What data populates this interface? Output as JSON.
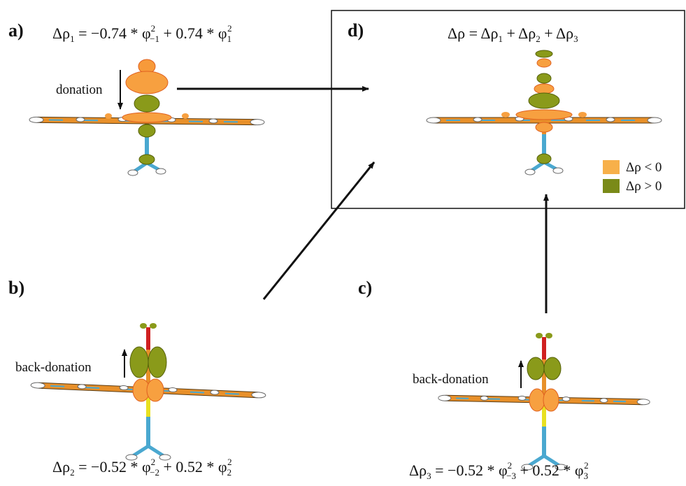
{
  "panels": [
    {
      "label": "a)",
      "equation": [
        "Δρ",
        "1",
        " = −0.74 * φ",
        "2",
        "−1",
        " + 0.74 * φ",
        "1",
        "2"
      ],
      "arrow_label": "donation"
    },
    {
      "label": "b)",
      "equation": [
        "Δρ",
        "2",
        " = −0.52 * φ",
        "2",
        "−2",
        " + 0.52 * φ",
        "2",
        "2"
      ],
      "arrow_label": "back-donation"
    },
    {
      "label": "c)",
      "equation": [
        "Δρ",
        "3",
        " = −0.52 * φ",
        "2",
        "−3",
        " + 0.52 * φ",
        "3",
        "2"
      ],
      "arrow_label": "back-donation"
    },
    {
      "label": "d)",
      "equation": [
        "Δρ = Δρ",
        "1",
        " + Δρ",
        "2",
        " + Δρ",
        "3"
      ]
    }
  ],
  "legend": [
    {
      "label": "Δρ < 0"
    },
    {
      "label": "Δρ > 0"
    }
  ]
}
